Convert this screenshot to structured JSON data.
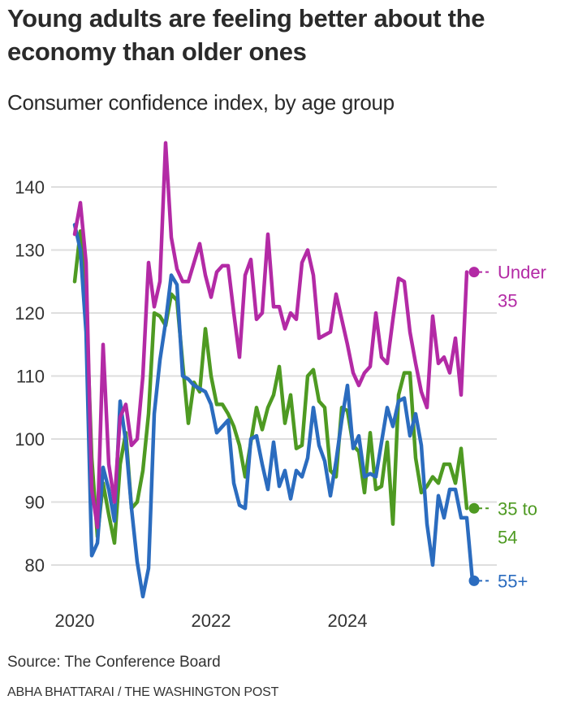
{
  "header": {
    "title": "Young adults are feeling better about the economy than older ones",
    "subtitle": "Consumer confidence index, by age group"
  },
  "footer": {
    "source": "Source: The Conference Board",
    "credit": "ABHA BHATTARAI / THE WASHINGTON POST"
  },
  "chart_data": {
    "type": "line",
    "title": "Young adults are feeling better about the economy than older ones",
    "subtitle": "Consumer confidence index, by age group",
    "xlabel": "",
    "ylabel": "",
    "x_start": "2020-01",
    "x_frequency": "monthly",
    "x_ticks": [
      "2020",
      "2022",
      "2024"
    ],
    "x_tick_months": [
      0,
      24,
      48
    ],
    "y_ticks": [
      80,
      90,
      100,
      110,
      120,
      130,
      140
    ],
    "ylim": [
      74,
      148
    ],
    "grid": true,
    "legend": "direct labels at line ends (right)",
    "series": [
      {
        "name": "Under 35",
        "label_lines": [
          "Under",
          "35"
        ],
        "color": "#b32aa5",
        "values": [
          132.5,
          137.5,
          128,
          92,
          86,
          115,
          96,
          90,
          103.5,
          105.5,
          99,
          100,
          110,
          128,
          121,
          125,
          147,
          132,
          127,
          125,
          125,
          128,
          131,
          126,
          122.5,
          126.5,
          127.5,
          127.5,
          120,
          113,
          126,
          128.5,
          119,
          120,
          132.5,
          121,
          121,
          117.5,
          120,
          119,
          128,
          130,
          126,
          116,
          116.5,
          117,
          123,
          119,
          115,
          110.5,
          108.5,
          110.5,
          111.5,
          120,
          113,
          112,
          119,
          125.5,
          125,
          117,
          112,
          107.5,
          105,
          119.5,
          112,
          113,
          110.5,
          116,
          107,
          126.5
        ]
      },
      {
        "name": "35 to 54",
        "label_lines": [
          "35 to",
          "54"
        ],
        "color": "#4e9a22",
        "values": [
          125,
          133,
          122,
          97,
          84.5,
          93,
          88,
          83.5,
          96,
          101,
          89,
          90,
          95,
          104,
          120,
          119.5,
          118,
          123,
          122,
          112,
          102.5,
          109,
          107.5,
          117.5,
          110,
          105.5,
          105.5,
          104,
          102,
          99,
          94,
          99.5,
          105,
          101.5,
          105,
          107,
          111.5,
          102.5,
          107,
          98.5,
          99,
          110,
          111,
          106,
          105,
          95,
          94,
          105,
          104.5,
          99,
          98,
          91.5,
          101,
          92,
          92.5,
          99.5,
          86.5,
          107,
          110.5,
          110.5,
          97,
          91.5,
          92.5,
          94,
          93,
          96,
          96,
          93,
          98.5,
          89
        ]
      },
      {
        "name": "55+",
        "label_lines": [
          "55+"
        ],
        "color": "#2b6cbf",
        "values": [
          134,
          130,
          117,
          81.5,
          83.5,
          95.5,
          92,
          87,
          106,
          99.5,
          89,
          80.5,
          75,
          79.5,
          104,
          112.5,
          118.5,
          126,
          124.5,
          110,
          109.5,
          108.5,
          108,
          107.5,
          105.5,
          101,
          102,
          103,
          93,
          89.5,
          89,
          100,
          100.5,
          96,
          92,
          99.5,
          92.5,
          95,
          90.5,
          95,
          94,
          97,
          105,
          99,
          96.5,
          91,
          96.5,
          103,
          108.5,
          98.5,
          100.5,
          94,
          94.5,
          94,
          99.5,
          105,
          102,
          106,
          106.5,
          100.5,
          104,
          99,
          86.5,
          80,
          91,
          87.5,
          92,
          92,
          87.5,
          87.5,
          77.5
        ]
      }
    ]
  }
}
